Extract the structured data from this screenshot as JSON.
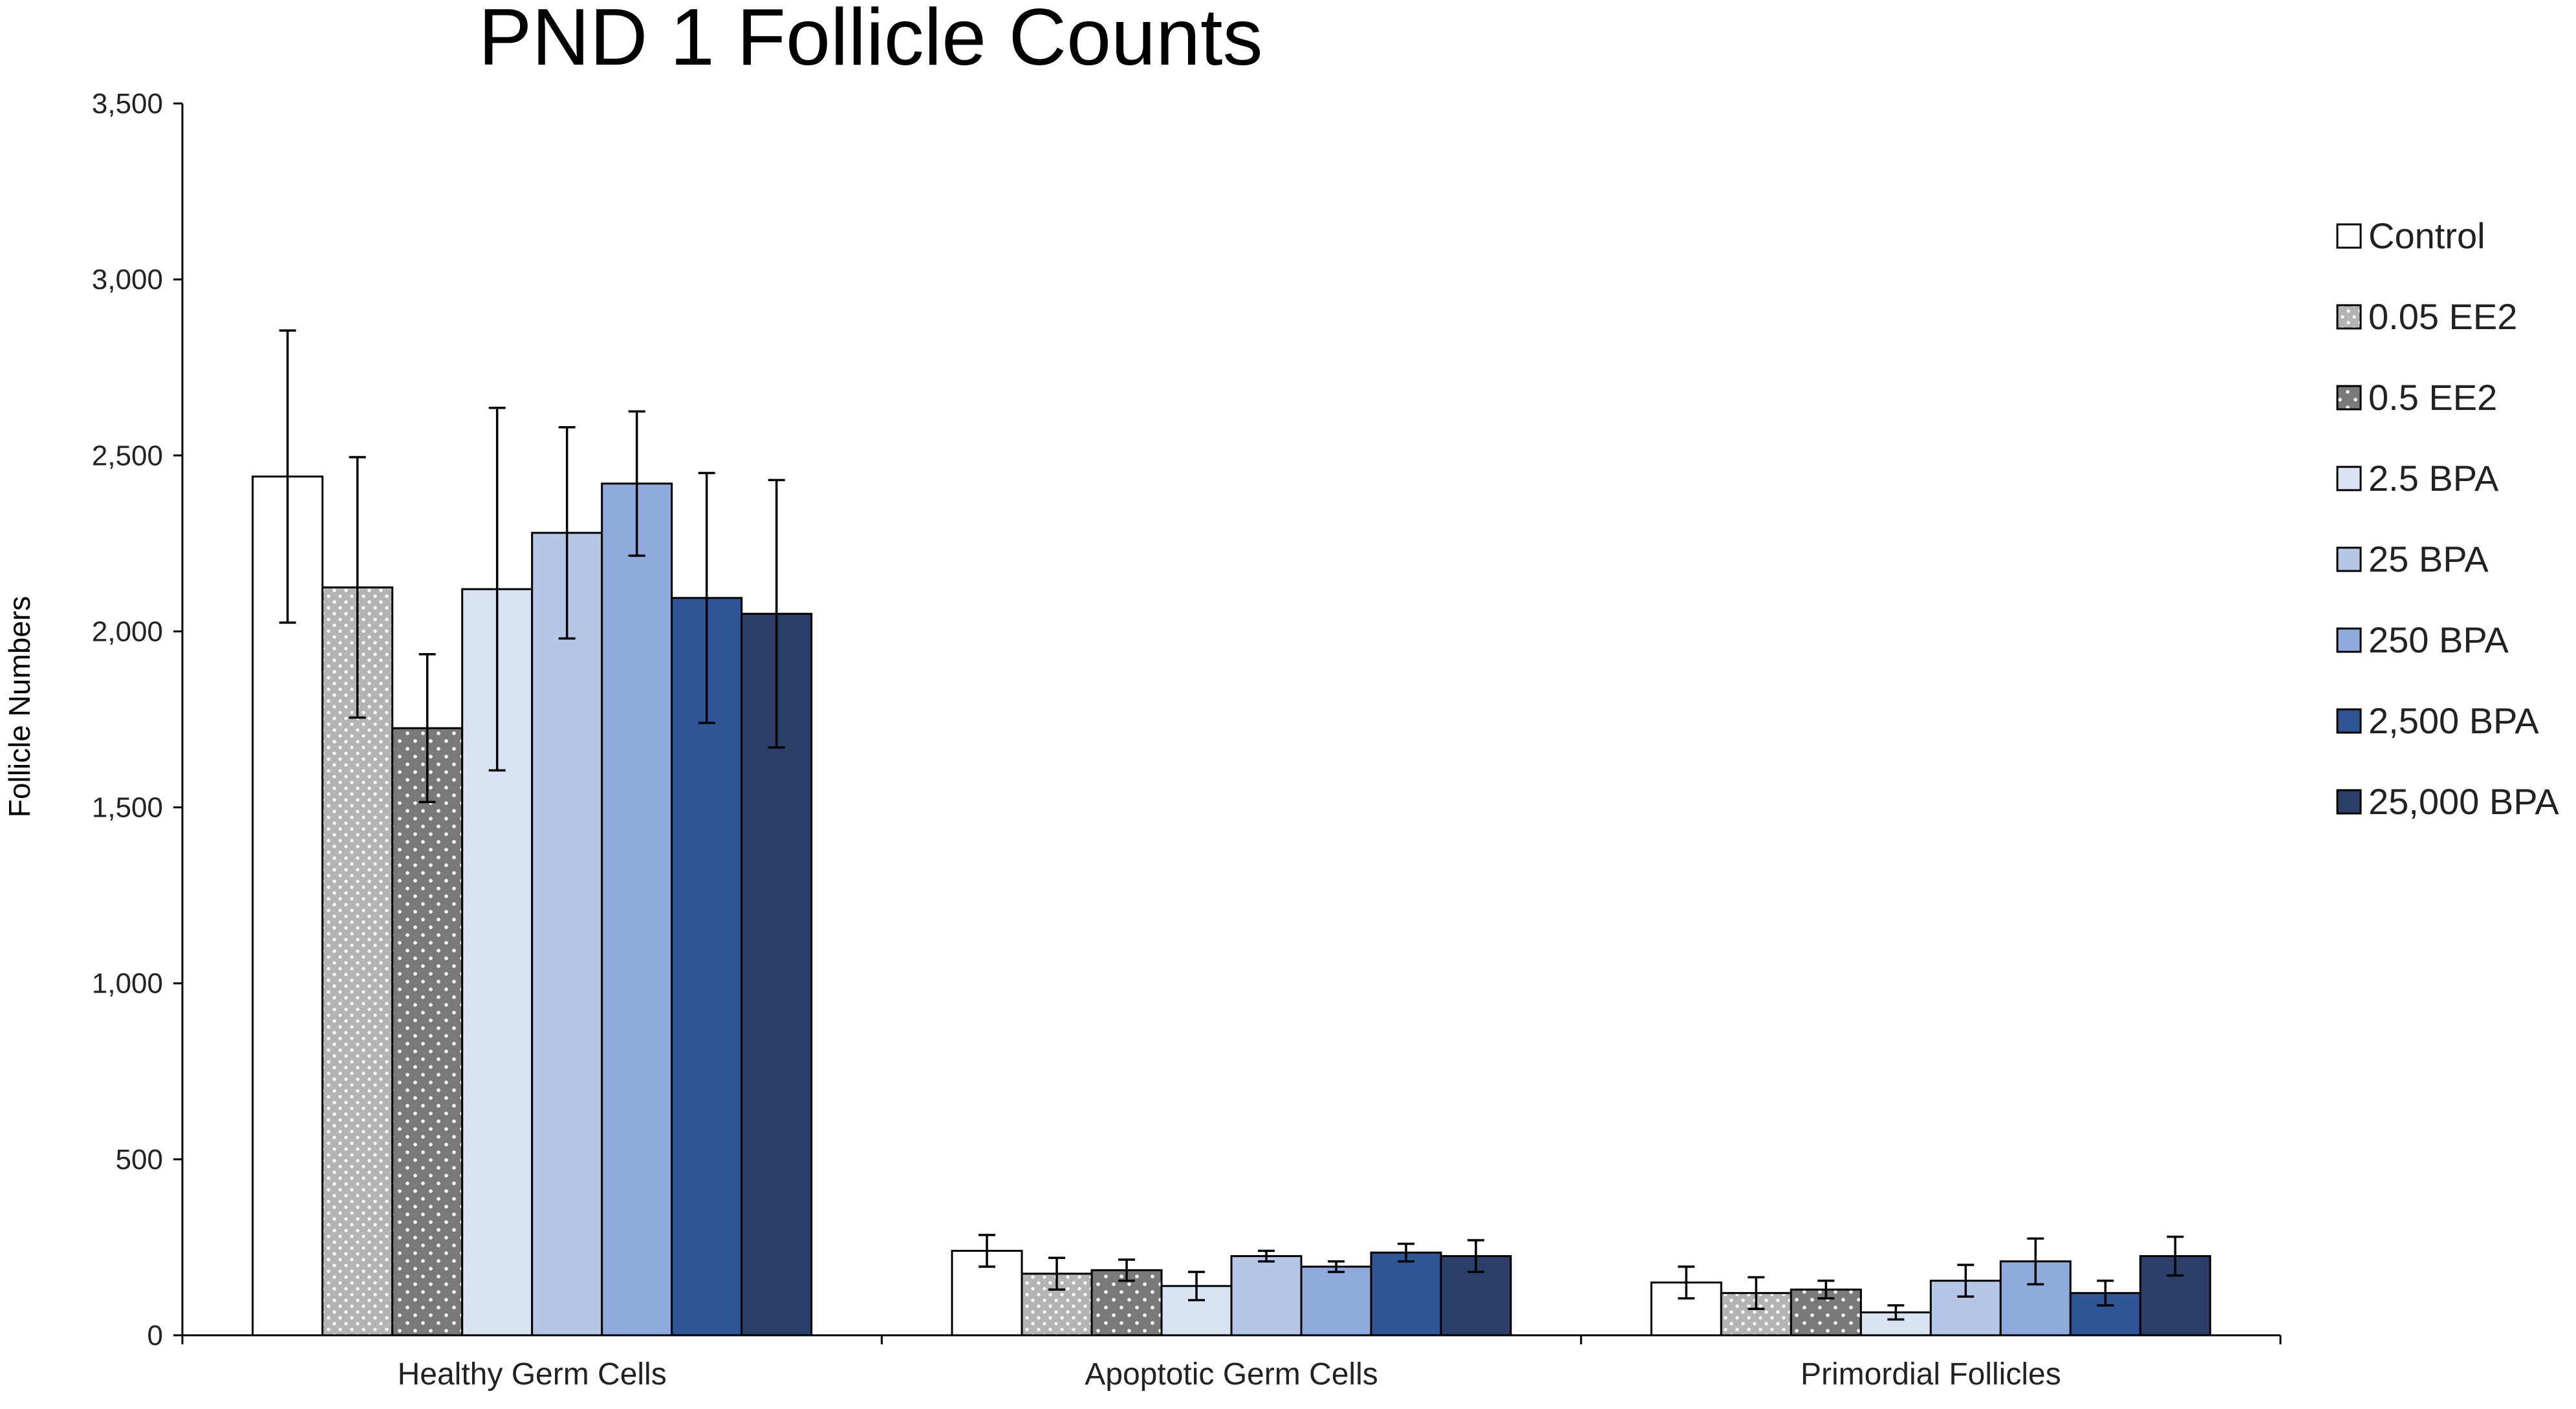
{
  "chart_data": {
    "type": "bar",
    "title": "PND 1 Follicle Counts",
    "xlabel": "",
    "ylabel": "Follicle Numbers",
    "ylim": [
      0,
      3500
    ],
    "yticks": [
      0,
      500,
      1000,
      1500,
      2000,
      2500,
      3000,
      3500
    ],
    "ytick_labels": [
      "0",
      "500",
      "1,000",
      "1,500",
      "2,000",
      "2,500",
      "3,000",
      "3,500"
    ],
    "grid": false,
    "legend_position": "right",
    "categories": [
      "Healthy Germ Cells",
      "Apoptotic Germ Cells",
      "Primordial Follicles"
    ],
    "series": [
      {
        "name": "Control",
        "color": "#ffffff",
        "pattern": "none",
        "values": [
          2440,
          240,
          150
        ],
        "errors": [
          415,
          45,
          45
        ]
      },
      {
        "name": "0.05 EE2",
        "color": "#b4b4b4",
        "pattern": "dots",
        "values": [
          2125,
          175,
          120
        ],
        "errors": [
          370,
          45,
          45
        ]
      },
      {
        "name": "0.5 EE2",
        "color": "#7a7a7a",
        "pattern": "dots",
        "values": [
          1725,
          185,
          130
        ],
        "errors": [
          210,
          30,
          25
        ]
      },
      {
        "name": "2.5 BPA",
        "color": "#dae3f3",
        "pattern": "none",
        "values": [
          2120,
          140,
          65
        ],
        "errors": [
          515,
          40,
          20
        ]
      },
      {
        "name": "25 BPA",
        "color": "#b4c7e7",
        "pattern": "none",
        "values": [
          2280,
          225,
          155
        ],
        "errors": [
          300,
          15,
          45
        ]
      },
      {
        "name": "250 BPA",
        "color": "#8faadc",
        "pattern": "none",
        "values": [
          2420,
          195,
          210
        ],
        "errors": [
          205,
          15,
          65
        ]
      },
      {
        "name": "2,500 BPA",
        "color": "#2f5597",
        "pattern": "none",
        "values": [
          2095,
          235,
          120
        ],
        "errors": [
          355,
          25,
          35
        ]
      },
      {
        "name": "25,000 BPA",
        "color": "#2b3f69",
        "pattern": "none",
        "values": [
          2050,
          225,
          225
        ],
        "errors": [
          380,
          45,
          55
        ]
      }
    ]
  }
}
